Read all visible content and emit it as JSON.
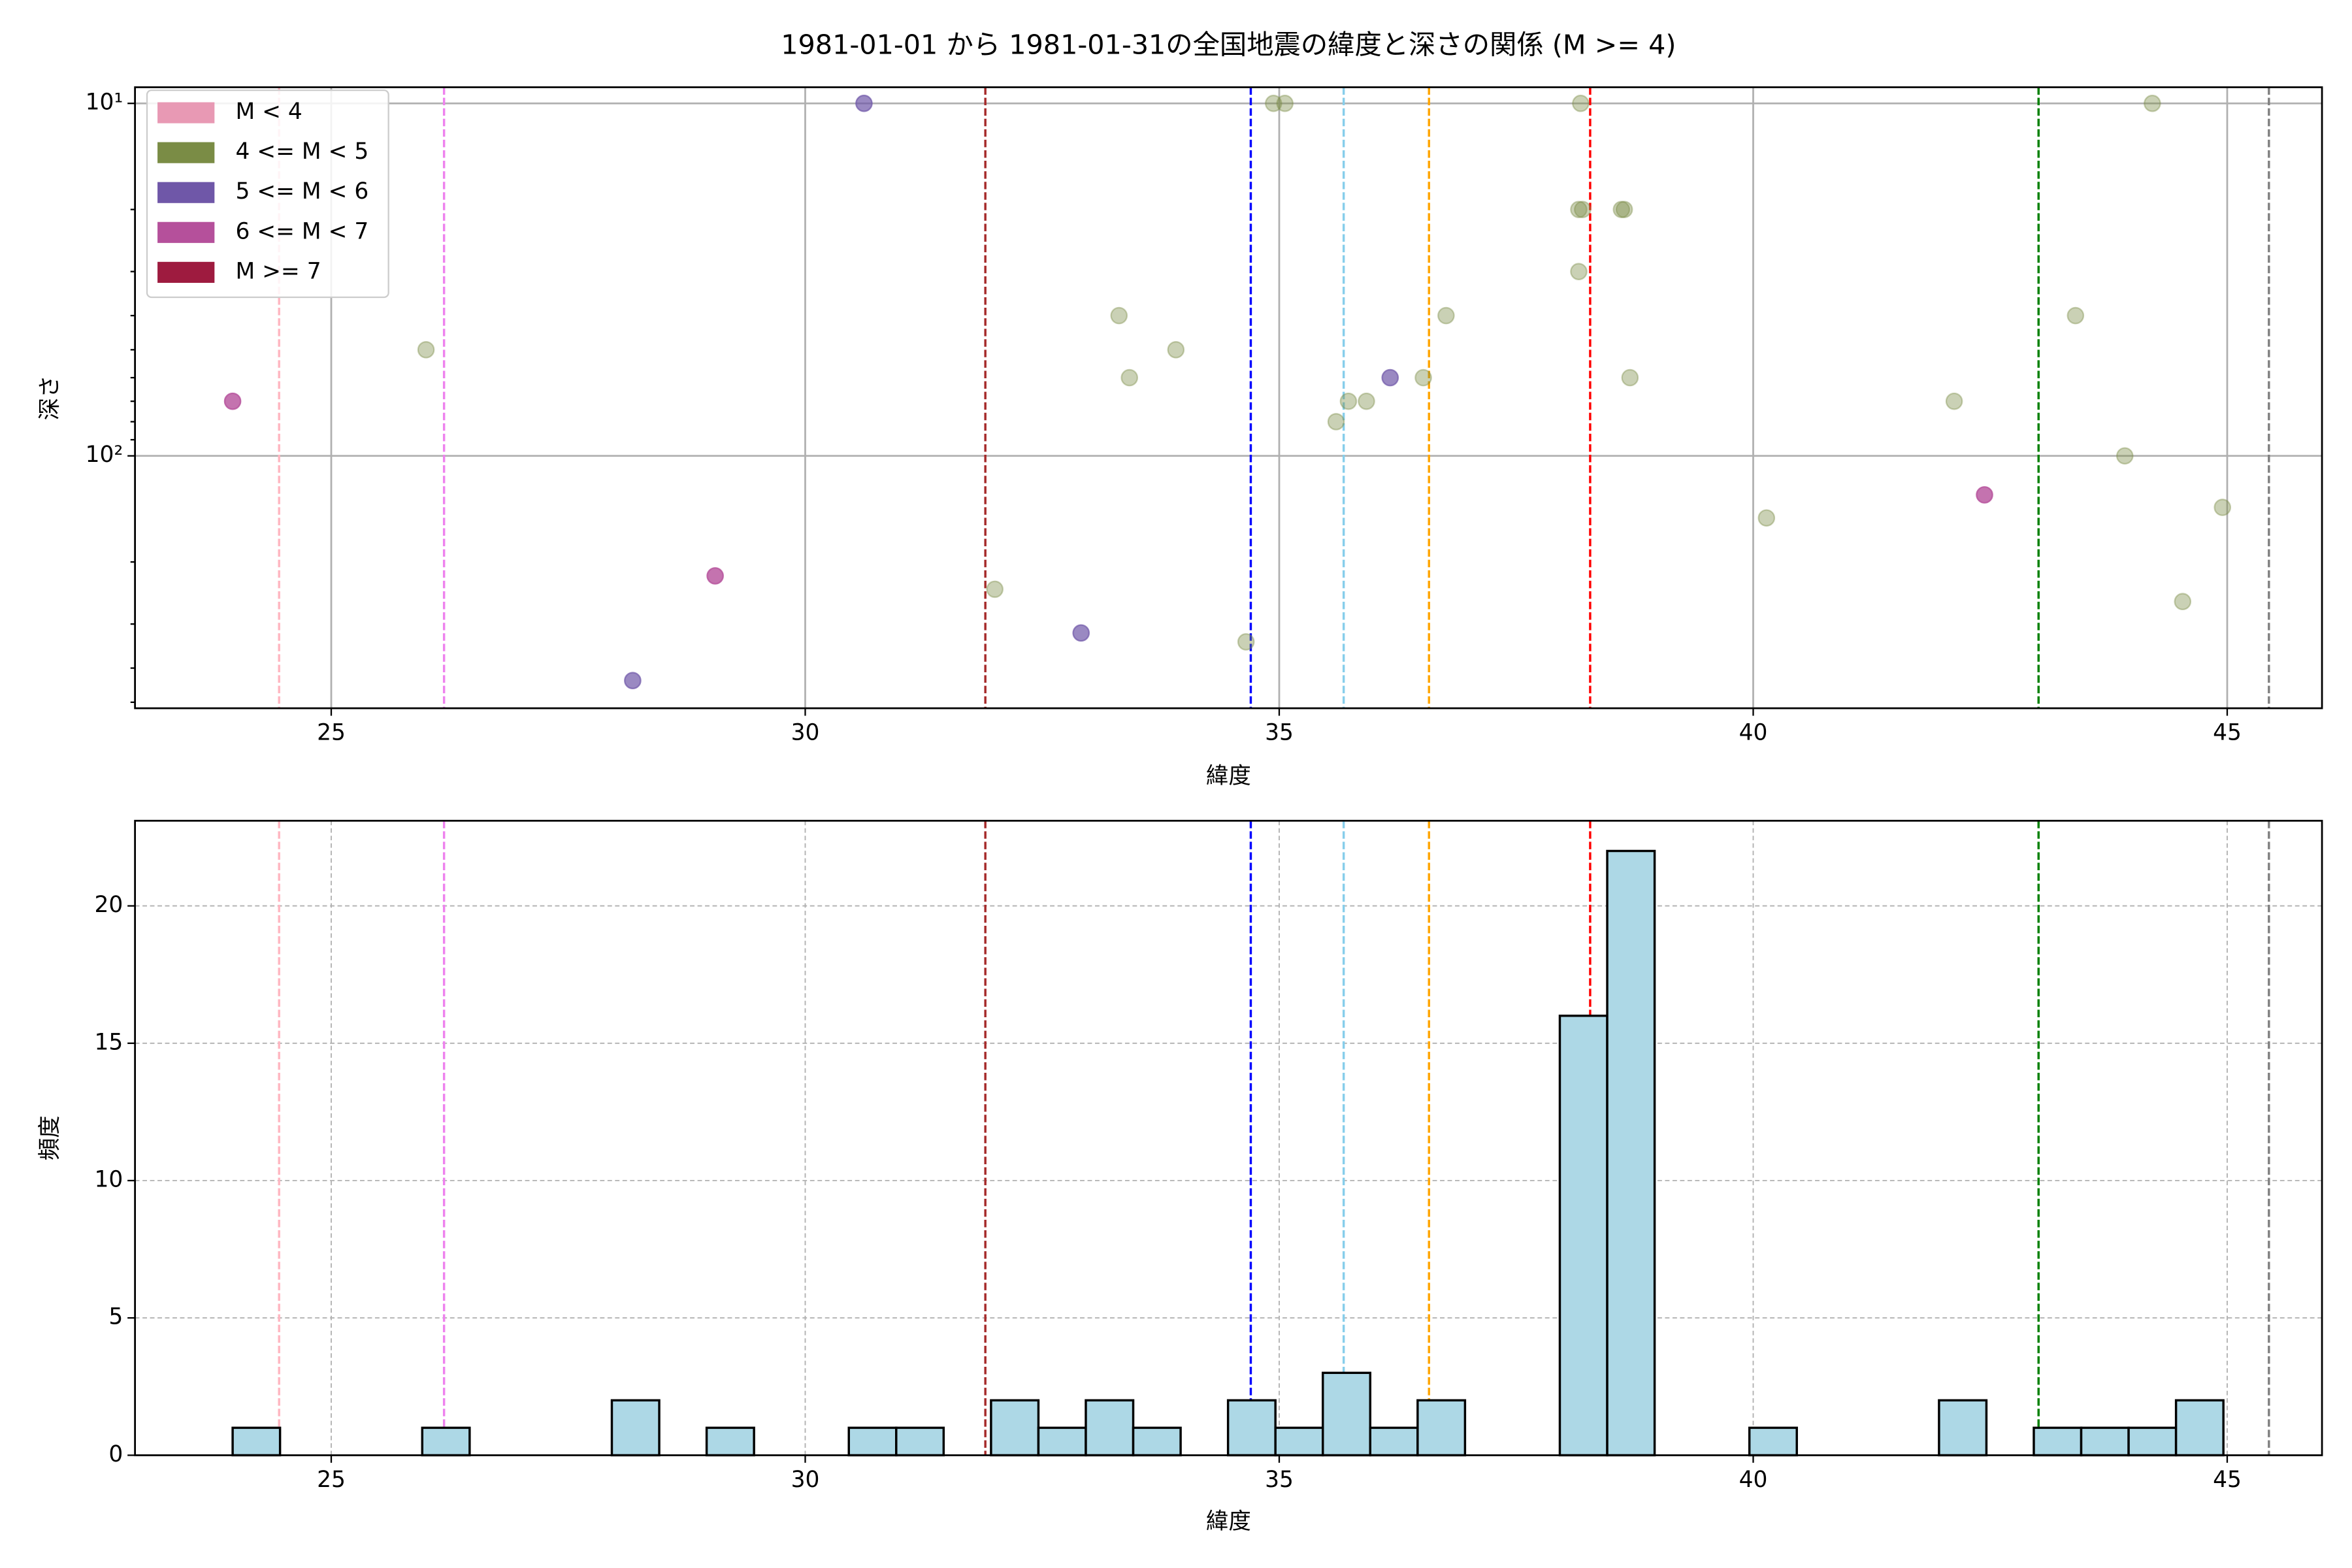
{
  "chart_data": [
    {
      "type": "scatter",
      "title": "1981-01-01 から 1981-01-31の全国地震の緯度と深さの関係 (M >= 4)",
      "xlabel": "緯度",
      "ylabel": "深さ",
      "xlim": [
        22.93,
        46.0
      ],
      "ylim": [
        9,
        520
      ],
      "y_scale": "log",
      "y_inverted": true,
      "xticks": [
        25,
        30,
        35,
        40,
        45
      ],
      "yticks": [
        {
          "value": 10,
          "label": "10¹"
        },
        {
          "value": 100,
          "label": "10²"
        }
      ],
      "y_minor_ticks": [
        20,
        30,
        40,
        50,
        60,
        70,
        80,
        90,
        200,
        300,
        400,
        500
      ],
      "grid": true,
      "legend": "upper left",
      "series": [
        {
          "name": "M < 4",
          "color": "#e899b4",
          "alpha": 0.7,
          "x": [],
          "values": []
        },
        {
          "name": "4 <= M < 5",
          "color": "#7a8c45",
          "alpha": 0.4,
          "x": [
            26.0,
            32.0,
            33.31,
            33.42,
            33.91,
            34.65,
            34.94,
            35.06,
            35.6,
            35.73,
            35.92,
            36.52,
            36.76,
            38.16,
            38.2,
            38.16,
            38.18,
            38.61,
            38.64,
            38.7,
            40.14,
            42.12,
            43.4,
            43.92,
            44.21,
            44.53,
            44.95
          ],
          "values": [
            50,
            239,
            40,
            60,
            50,
            337,
            10,
            10,
            80,
            70,
            70,
            60,
            40,
            20,
            20,
            30,
            10,
            20,
            20,
            60,
            150,
            70,
            40,
            100,
            10,
            259,
            140
          ]
        },
        {
          "name": "5 <= M < 6",
          "color": "#6f57a8",
          "alpha": 0.7,
          "x": [
            30.62,
            28.18,
            32.91,
            36.17
          ],
          "values": [
            10,
            434,
            318,
            60
          ]
        },
        {
          "name": "6 <= M < 7",
          "color": "#b5509b",
          "alpha": 0.8,
          "x": [
            23.96,
            29.05,
            42.44
          ],
          "values": [
            70,
            219,
            129
          ]
        },
        {
          "name": "M >= 7",
          "color": "#9e1b3f",
          "alpha": 0.8,
          "x": [],
          "values": []
        }
      ],
      "vlines": [
        {
          "x": 24.45,
          "color": "#ffb6c1"
        },
        {
          "x": 26.19,
          "color": "#ee82ee"
        },
        {
          "x": 31.9,
          "color": "#a52a2a"
        },
        {
          "x": 34.7,
          "color": "#0000ff"
        },
        {
          "x": 35.68,
          "color": "#87ceeb"
        },
        {
          "x": 36.58,
          "color": "#ffa500"
        },
        {
          "x": 38.28,
          "color": "#ff0000"
        },
        {
          "x": 43.01,
          "color": "#008000"
        },
        {
          "x": 45.44,
          "color": "#808080"
        }
      ]
    },
    {
      "type": "histogram",
      "xlabel": "緯度",
      "ylabel": "頻度",
      "xlim": [
        22.93,
        46.0
      ],
      "ylim": [
        0,
        23.1
      ],
      "xticks": [
        25,
        30,
        35,
        40,
        45
      ],
      "yticks": [
        0,
        5,
        10,
        15,
        20
      ],
      "grid": true,
      "grid_style": "dashed",
      "color": "#add8e6",
      "edgecolor": "#000000",
      "bins": [
        23.96,
        24.46,
        24.96,
        25.46,
        25.96,
        26.46,
        26.96,
        27.46,
        27.96,
        28.46,
        28.96,
        29.46,
        29.96,
        30.46,
        30.96,
        31.46,
        31.96,
        32.46,
        32.96,
        33.46,
        33.96,
        34.46,
        34.96,
        35.46,
        35.96,
        36.46,
        36.96,
        37.46,
        37.96,
        38.46,
        38.96,
        39.46,
        39.96,
        40.46,
        40.96,
        41.46,
        41.96,
        42.46,
        42.96,
        43.46,
        43.96,
        44.46,
        44.96
      ],
      "counts": [
        1,
        0,
        0,
        0,
        1,
        0,
        0,
        0,
        2,
        0,
        1,
        0,
        0,
        1,
        1,
        0,
        2,
        1,
        2,
        1,
        0,
        2,
        1,
        3,
        1,
        2,
        0,
        0,
        16,
        22,
        0,
        0,
        1,
        0,
        0,
        0,
        2,
        0,
        1,
        1,
        1,
        2
      ],
      "vlines": [
        {
          "x": 24.45,
          "color": "#ffb6c1"
        },
        {
          "x": 26.19,
          "color": "#ee82ee"
        },
        {
          "x": 31.9,
          "color": "#a52a2a"
        },
        {
          "x": 34.7,
          "color": "#0000ff"
        },
        {
          "x": 35.68,
          "color": "#87ceeb"
        },
        {
          "x": 36.58,
          "color": "#ffa500"
        },
        {
          "x": 38.28,
          "color": "#ff0000"
        },
        {
          "x": 43.01,
          "color": "#008000"
        },
        {
          "x": 45.44,
          "color": "#808080"
        }
      ]
    }
  ]
}
